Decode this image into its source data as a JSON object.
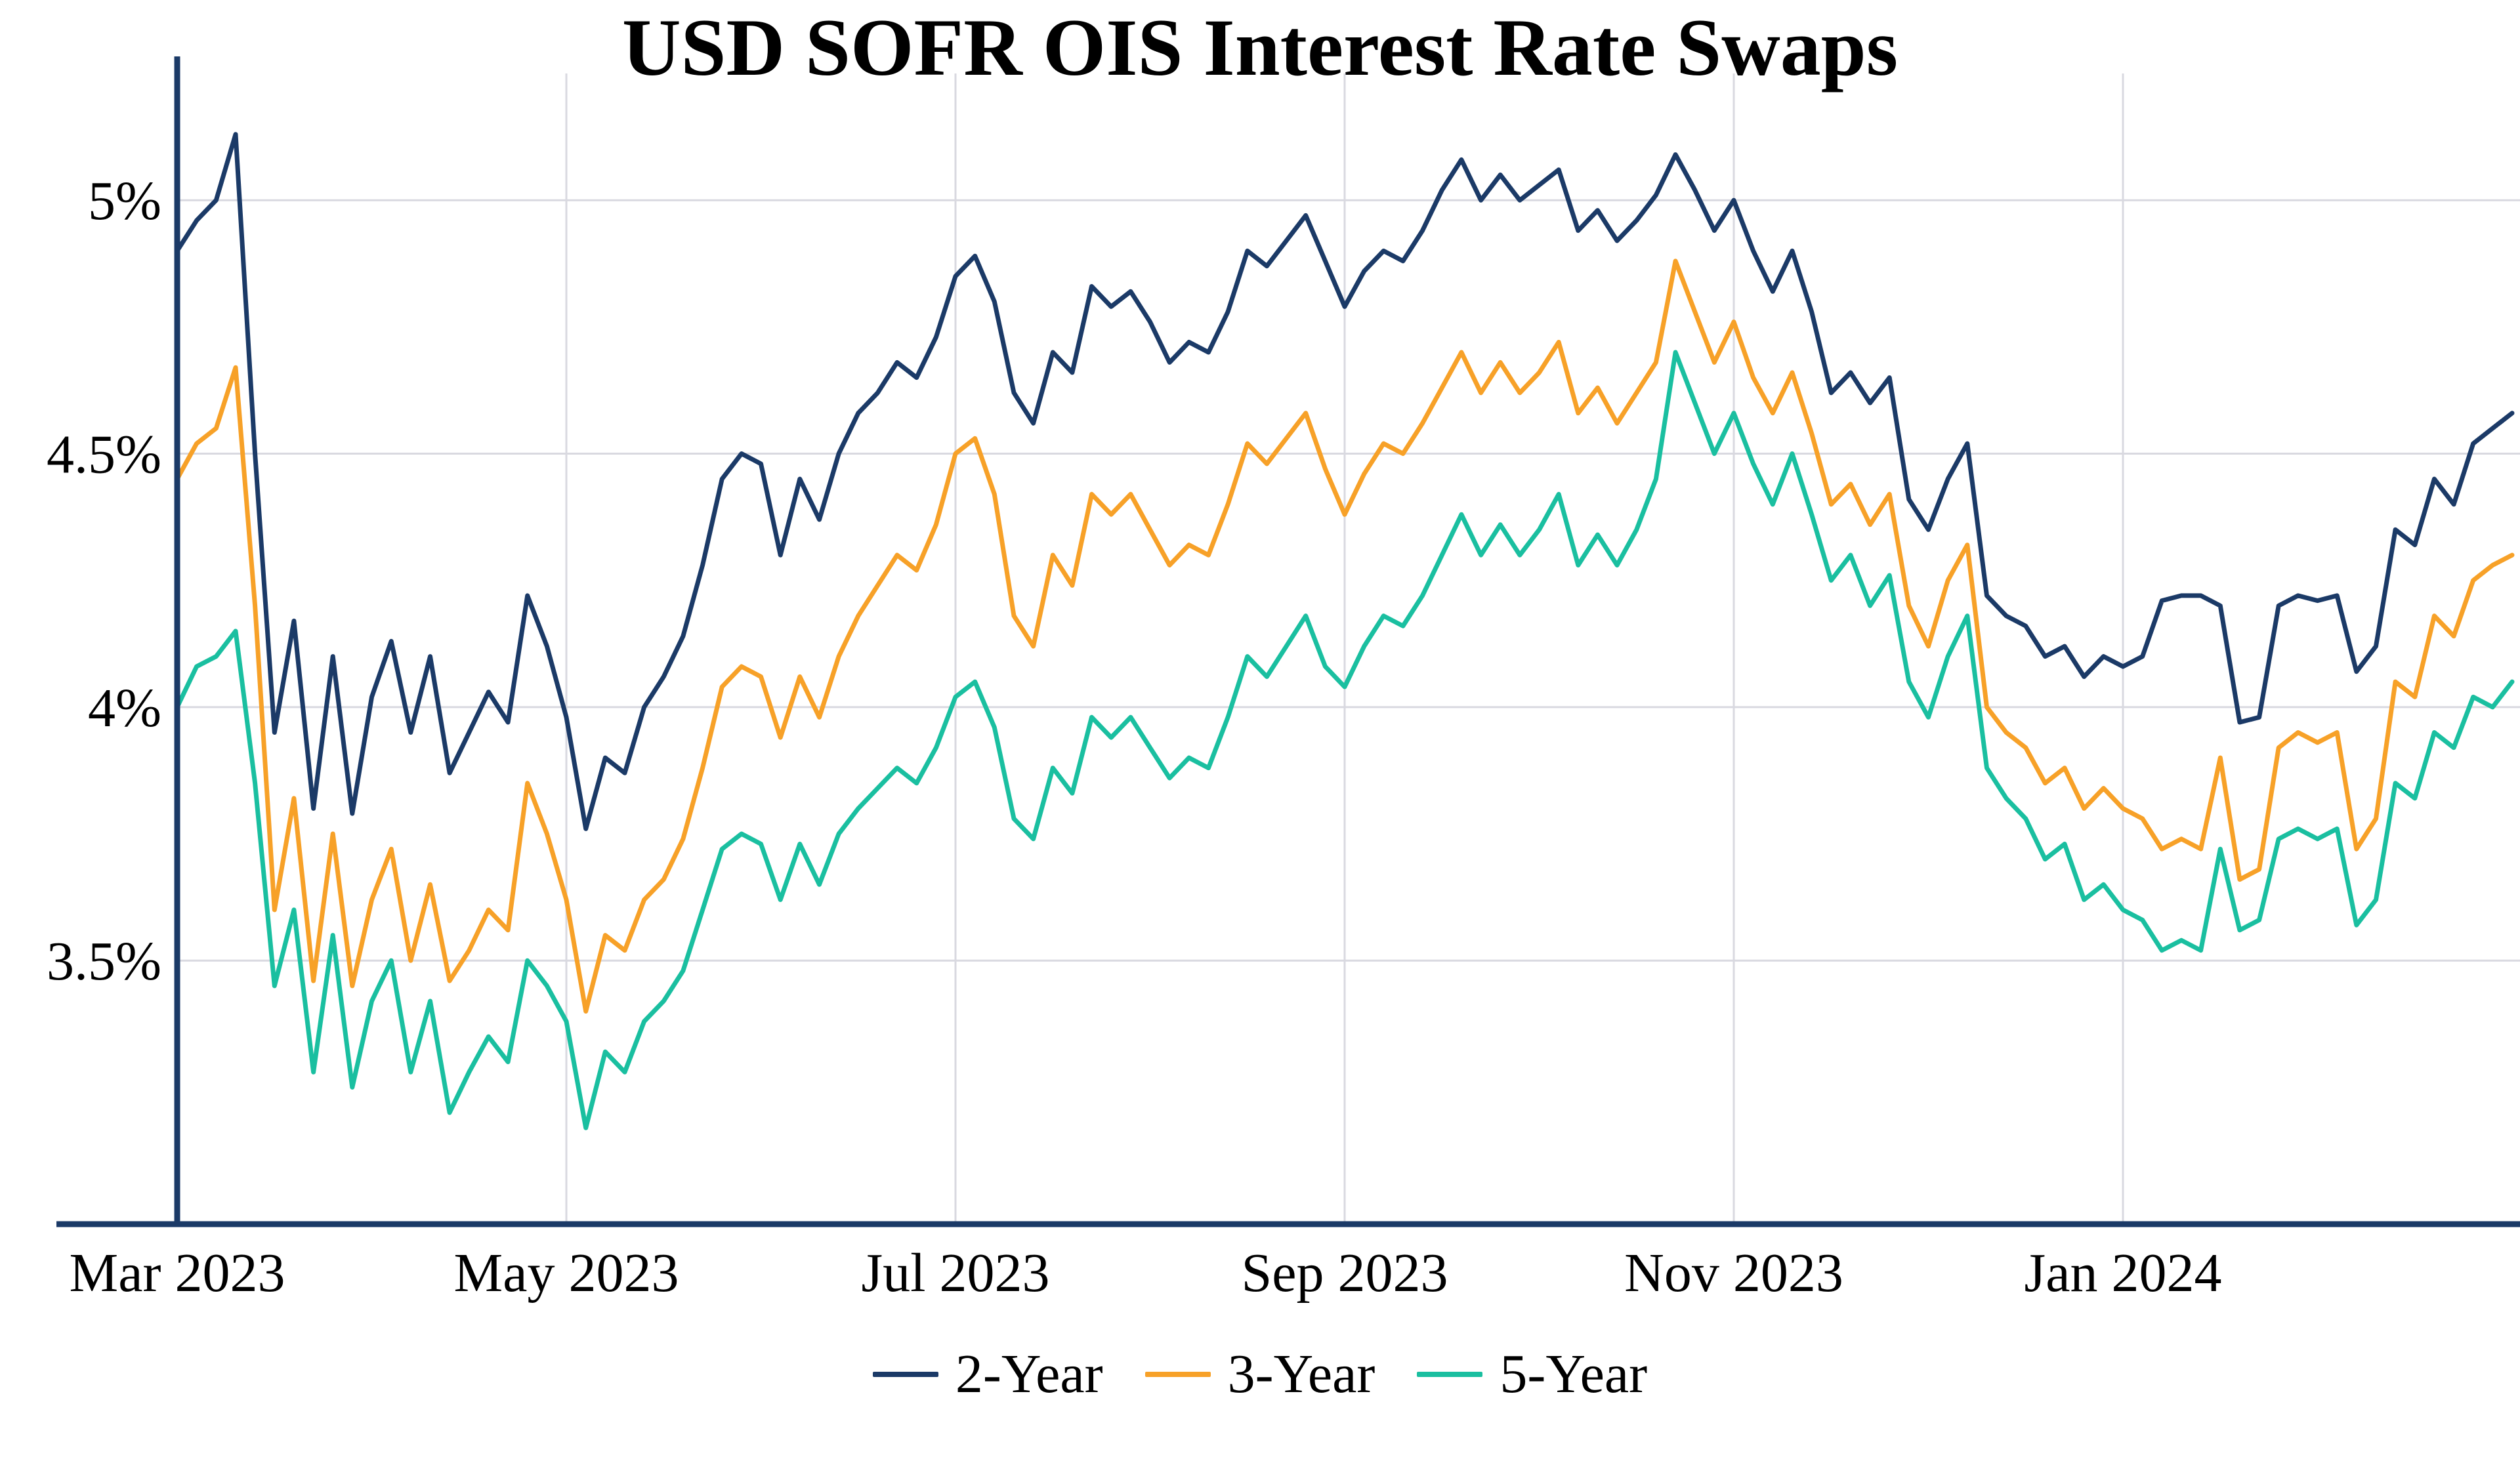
{
  "chart_data": {
    "type": "line",
    "title": "USD SOFR OIS Interest Rate Swaps",
    "xlabel": "",
    "ylabel": "",
    "grid": true,
    "legend_position": "bottom",
    "colors": {
      "axis": "#1b3a67",
      "grid": "#d9d9e0"
    },
    "x_axis": {
      "unit": "months since Mar 2023",
      "xlim": [
        0,
        12
      ],
      "x_step": 0.1,
      "ticks": [
        {
          "pos": 0,
          "label": "Mar 2023"
        },
        {
          "pos": 2,
          "label": "May 2023"
        },
        {
          "pos": 4,
          "label": "Jul 2023"
        },
        {
          "pos": 6,
          "label": "Sep 2023"
        },
        {
          "pos": 8,
          "label": "Nov 2023"
        },
        {
          "pos": 10,
          "label": "Jan 2024"
        }
      ]
    },
    "y_axis": {
      "unit": "percent",
      "ylim": [
        2.98,
        5.25
      ],
      "ticks": [
        {
          "value": 3.5,
          "label": "3.5%"
        },
        {
          "value": 4.0,
          "label": "4%"
        },
        {
          "value": 4.5,
          "label": "4.5%"
        },
        {
          "value": 5.0,
          "label": "5%"
        }
      ]
    },
    "series": [
      {
        "name": "2-Year",
        "color": "#1b3a67",
        "values": [
          4.9,
          4.96,
          5.0,
          5.13,
          4.5,
          3.95,
          4.17,
          3.8,
          4.1,
          3.79,
          4.02,
          4.13,
          3.95,
          4.1,
          3.87,
          3.95,
          4.03,
          3.97,
          4.22,
          4.12,
          3.98,
          3.76,
          3.9,
          3.87,
          4.0,
          4.06,
          4.14,
          4.28,
          4.45,
          4.5,
          4.48,
          4.3,
          4.45,
          4.37,
          4.5,
          4.58,
          4.62,
          4.68,
          4.65,
          4.73,
          4.85,
          4.89,
          4.8,
          4.62,
          4.56,
          4.7,
          4.66,
          4.83,
          4.79,
          4.82,
          4.76,
          4.68,
          4.72,
          4.7,
          4.78,
          4.9,
          4.87,
          4.92,
          4.97,
          4.88,
          4.79,
          4.86,
          4.9,
          4.88,
          4.94,
          5.02,
          5.08,
          5.0,
          5.05,
          5.0,
          5.03,
          5.06,
          4.94,
          4.98,
          4.92,
          4.96,
          5.01,
          5.09,
          5.02,
          4.94,
          5.0,
          4.9,
          4.82,
          4.9,
          4.78,
          4.62,
          4.66,
          4.6,
          4.65,
          4.41,
          4.35,
          4.45,
          4.52,
          4.22,
          4.18,
          4.16,
          4.1,
          4.12,
          4.06,
          4.1,
          4.08,
          4.1,
          4.21,
          4.22,
          4.22,
          4.2,
          3.97,
          3.98,
          4.2,
          4.22,
          4.21,
          4.22,
          4.07,
          4.12,
          4.35,
          4.32,
          4.45,
          4.4,
          4.52,
          4.55,
          4.58
        ]
      },
      {
        "name": "3-Year",
        "color": "#f7a128",
        "values": [
          4.45,
          4.52,
          4.55,
          4.67,
          4.2,
          3.6,
          3.82,
          3.46,
          3.75,
          3.45,
          3.62,
          3.72,
          3.5,
          3.65,
          3.46,
          3.52,
          3.6,
          3.56,
          3.85,
          3.75,
          3.62,
          3.4,
          3.55,
          3.52,
          3.62,
          3.66,
          3.74,
          3.88,
          4.04,
          4.08,
          4.06,
          3.94,
          4.06,
          3.98,
          4.1,
          4.18,
          4.24,
          4.3,
          4.27,
          4.36,
          4.5,
          4.53,
          4.42,
          4.18,
          4.12,
          4.3,
          4.24,
          4.42,
          4.38,
          4.42,
          4.35,
          4.28,
          4.32,
          4.3,
          4.4,
          4.52,
          4.48,
          4.53,
          4.58,
          4.47,
          4.38,
          4.46,
          4.52,
          4.5,
          4.56,
          4.63,
          4.7,
          4.62,
          4.68,
          4.62,
          4.66,
          4.72,
          4.58,
          4.63,
          4.56,
          4.62,
          4.68,
          4.88,
          4.78,
          4.68,
          4.76,
          4.65,
          4.58,
          4.66,
          4.54,
          4.4,
          4.44,
          4.36,
          4.42,
          4.2,
          4.12,
          4.25,
          4.32,
          4.0,
          3.95,
          3.92,
          3.85,
          3.88,
          3.8,
          3.84,
          3.8,
          3.78,
          3.72,
          3.74,
          3.72,
          3.9,
          3.66,
          3.68,
          3.92,
          3.95,
          3.93,
          3.95,
          3.72,
          3.78,
          4.05,
          4.02,
          4.18,
          4.14,
          4.25,
          4.28,
          4.3
        ]
      },
      {
        "name": "5-Year",
        "color": "#1abfa0",
        "values": [
          4.0,
          4.08,
          4.1,
          4.15,
          3.85,
          3.45,
          3.6,
          3.28,
          3.55,
          3.25,
          3.42,
          3.5,
          3.28,
          3.42,
          3.2,
          3.28,
          3.35,
          3.3,
          3.5,
          3.45,
          3.38,
          3.17,
          3.32,
          3.28,
          3.38,
          3.42,
          3.48,
          3.6,
          3.72,
          3.75,
          3.73,
          3.62,
          3.73,
          3.65,
          3.75,
          3.8,
          3.84,
          3.88,
          3.85,
          3.92,
          4.02,
          4.05,
          3.96,
          3.78,
          3.74,
          3.88,
          3.83,
          3.98,
          3.94,
          3.98,
          3.92,
          3.86,
          3.9,
          3.88,
          3.98,
          4.1,
          4.06,
          4.12,
          4.18,
          4.08,
          4.04,
          4.12,
          4.18,
          4.16,
          4.22,
          4.3,
          4.38,
          4.3,
          4.36,
          4.3,
          4.35,
          4.42,
          4.28,
          4.34,
          4.28,
          4.35,
          4.45,
          4.7,
          4.6,
          4.5,
          4.58,
          4.48,
          4.4,
          4.5,
          4.38,
          4.25,
          4.3,
          4.2,
          4.26,
          4.05,
          3.98,
          4.1,
          4.18,
          3.88,
          3.82,
          3.78,
          3.7,
          3.73,
          3.62,
          3.65,
          3.6,
          3.58,
          3.52,
          3.54,
          3.52,
          3.72,
          3.56,
          3.58,
          3.74,
          3.76,
          3.74,
          3.76,
          3.57,
          3.62,
          3.85,
          3.82,
          3.95,
          3.92,
          4.02,
          4.0,
          4.05
        ]
      }
    ]
  }
}
